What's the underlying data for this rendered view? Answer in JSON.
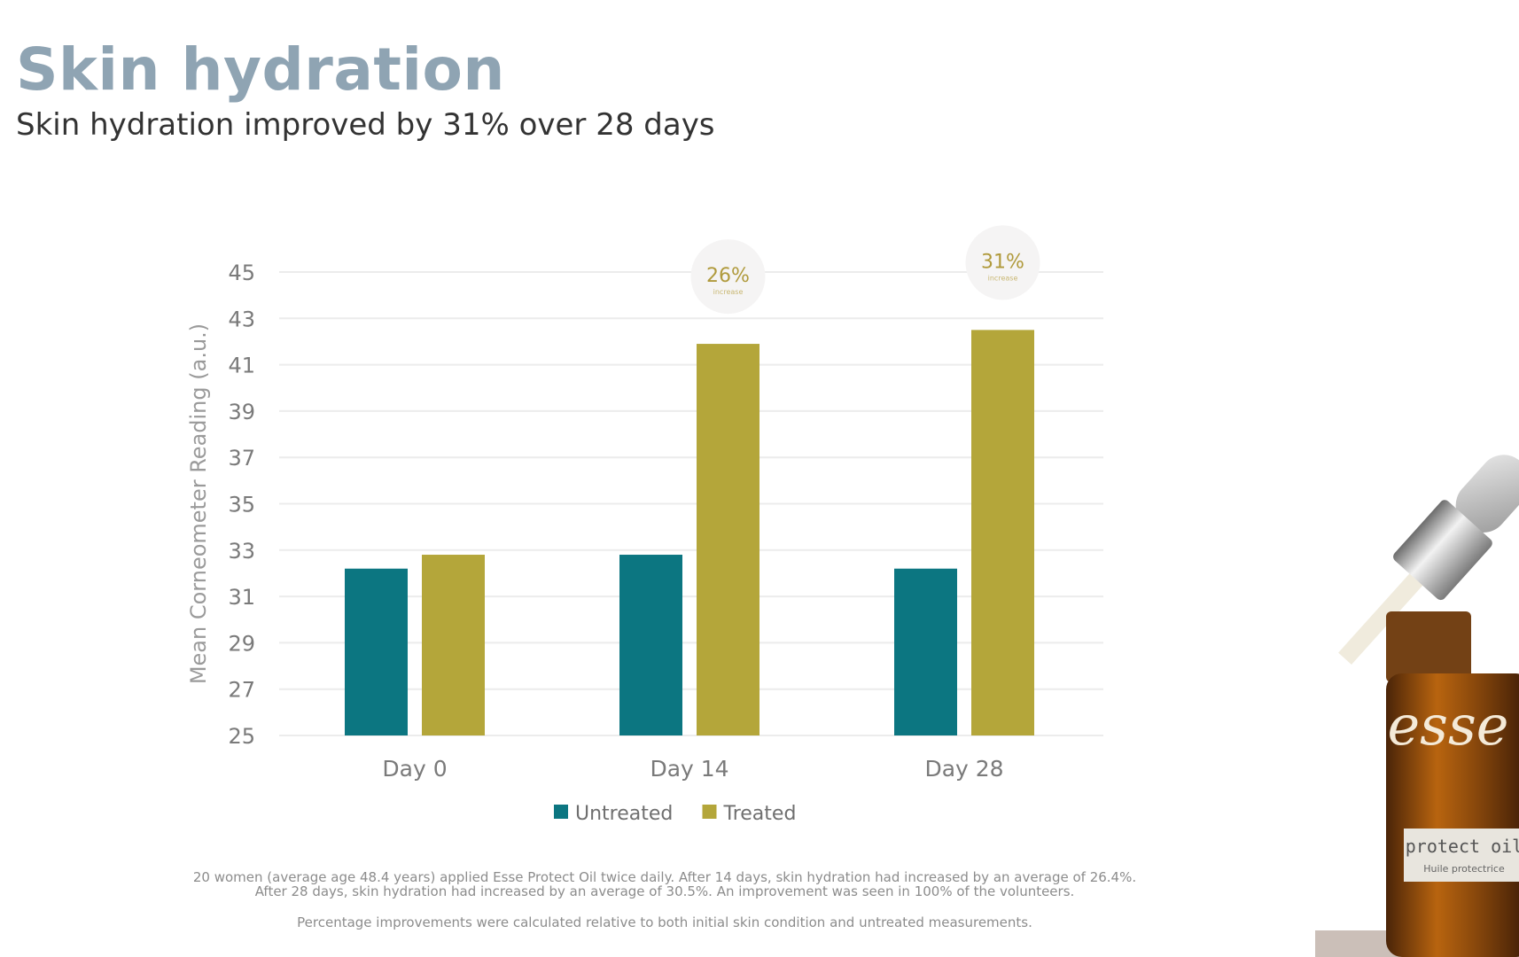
{
  "header": {
    "title": "Skin hydration",
    "subtitle": "Skin hydration improved by 31% over 28 days"
  },
  "chart_data": {
    "type": "bar",
    "categories": [
      "Day 0",
      "Day 14",
      "Day 28"
    ],
    "series": [
      {
        "name": "Untreated",
        "color": "#0c7681",
        "values": [
          32.2,
          32.8,
          32.2
        ]
      },
      {
        "name": "Treated",
        "color": "#b4a63a",
        "values": [
          32.8,
          41.9,
          42.5
        ]
      }
    ],
    "ylabel": "Mean Corneometer Reading (a.u.)",
    "ylim": [
      25,
      45
    ],
    "yticks": [
      25,
      27,
      29,
      31,
      33,
      35,
      37,
      39,
      41,
      43,
      45
    ],
    "grid": true,
    "legend_position": "bottom",
    "annotations": [
      {
        "category": "Day 14",
        "text": "26%",
        "subtext": "increase"
      },
      {
        "category": "Day 28",
        "text": "31%",
        "subtext": "increase"
      }
    ]
  },
  "footnotes": {
    "study": "20 women (average age 48.4 years) applied Esse Protect Oil twice daily. After 14 days, skin hydration had increased by an average of 26.4%. After 28 days, skin hydration had increased by an average of 30.5%. An improvement was seen in 100% of the volunteers.",
    "method": "Percentage improvements were calculated relative to both initial skin condition and untreated measurements."
  },
  "product": {
    "brand": "esse",
    "name": "protect oil",
    "name_fr": "Huile protectrice"
  }
}
